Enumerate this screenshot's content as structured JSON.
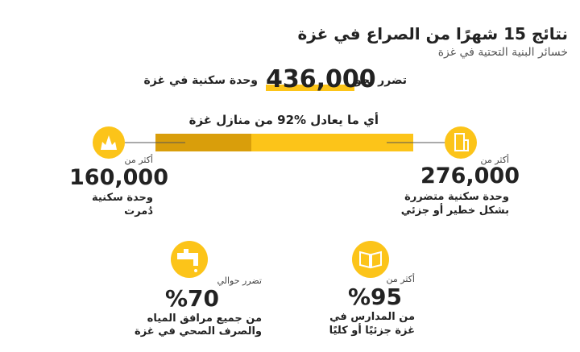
{
  "header": {
    "title": "نتائج 15 شهرًا من الصراع في غزة",
    "subtitle": "خسائر البنية التحتية في غزة"
  },
  "headline": {
    "prefix": "تضرر نحو",
    "number": "436,000",
    "suffix": "وحدة سكنية في غزة",
    "share": "أي ما يعادل %92 من منازل غزة"
  },
  "destroyed": {
    "lead": "أكثر من",
    "number": "160,000",
    "line1": "وحدة سكنية",
    "line2": "دُمرت"
  },
  "damaged": {
    "lead": "أكثر من",
    "number": "276,000",
    "line1": "وحدة سكنية متضررة",
    "line2": "بشكل خطير أو جزئي"
  },
  "water": {
    "lead": "تضرر حوالي",
    "number": "%70",
    "line1": "من جميع مرافق المياه",
    "line2": "والصرف الصحي في غزة"
  },
  "schools": {
    "lead": "أكثر من",
    "number": "%95",
    "line1": "من المدارس في",
    "line2": "غزة جزئيًا أو كليًا"
  }
}
